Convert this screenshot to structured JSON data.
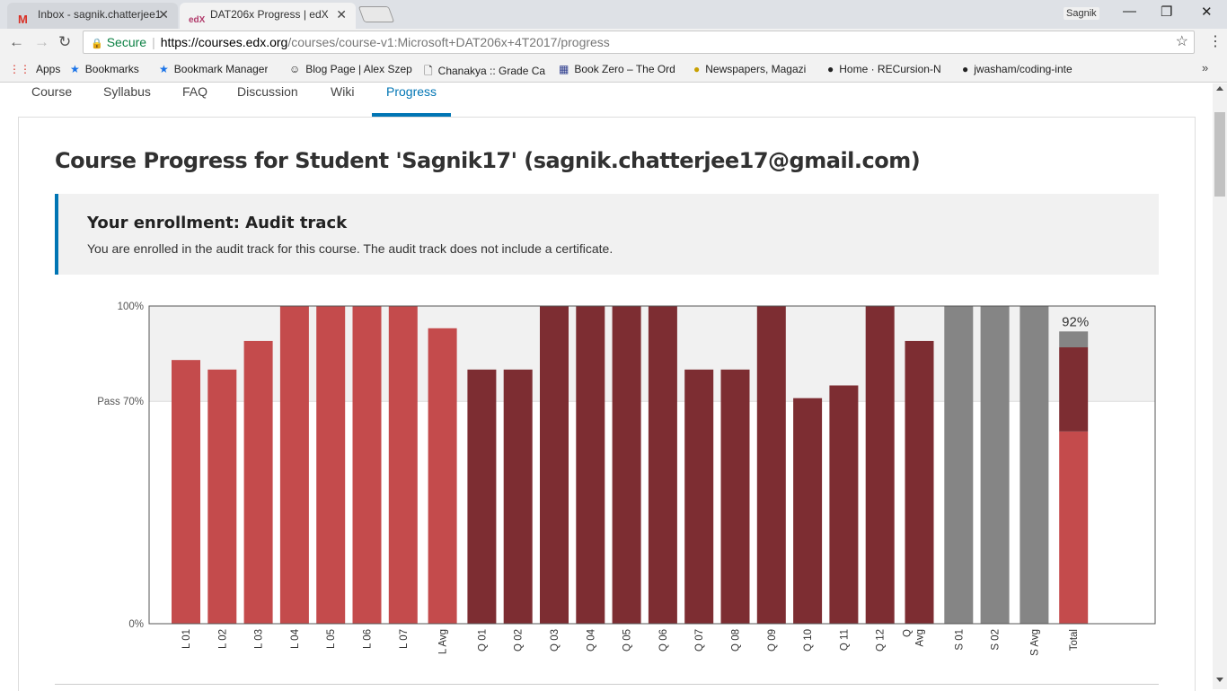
{
  "browser": {
    "tabs": [
      {
        "favicon": "M",
        "title": "Inbox - sagnik.chatterjee1"
      },
      {
        "favicon": "edX",
        "title": "DAT206x Progress | edX"
      }
    ],
    "profile_name": "Sagnik",
    "omnibox": {
      "secure_label": "Secure",
      "url_host": "https://courses.edx.org",
      "url_path": "/courses/course-v1:Microsoft+DAT206x+4T2017/progress"
    },
    "bookmarks": [
      {
        "icon": "apps-grid-icon",
        "label": "Apps"
      },
      {
        "icon": "star-icon",
        "label": "Bookmarks"
      },
      {
        "icon": "star-icon",
        "label": "Bookmark Manager"
      },
      {
        "icon": "person-icon",
        "label": "Blog Page | Alex Szep"
      },
      {
        "icon": "page-icon",
        "label": "Chanakya :: Grade Ca"
      },
      {
        "icon": "grid-icon",
        "label": "Book Zero – The Ord"
      },
      {
        "icon": "owl-icon",
        "label": "Newspapers, Magazi"
      },
      {
        "icon": "github-icon",
        "label": "Home · RECursion-N"
      },
      {
        "icon": "github-icon",
        "label": "jwasham/coding-inte"
      }
    ]
  },
  "course_nav": {
    "items": [
      "Course",
      "Syllabus",
      "FAQ",
      "Discussion",
      "Wiki",
      "Progress"
    ],
    "active": "Progress"
  },
  "page": {
    "title": "Course Progress for Student 'Sagnik17' (sagnik.chatterjee17@gmail.com)",
    "enrollment": {
      "title": "Your enrollment: Audit track",
      "text": "You are enrolled in the audit track for this course. The audit track does not include a certificate."
    }
  },
  "colors": {
    "lab": "#c44b4c",
    "quiz": "#7d2d32",
    "survey": "#858585",
    "pass_region": "#f1f1f1",
    "accent": "#0075b4"
  },
  "chart_data": {
    "type": "bar",
    "title": "",
    "xlabel": "",
    "ylabel": "",
    "ylim": [
      0,
      100
    ],
    "y_tick_labels": [
      {
        "value": 100,
        "label": "100%"
      },
      {
        "value": 70,
        "label": "Pass 70%"
      },
      {
        "value": 0,
        "label": "0%"
      }
    ],
    "grid": false,
    "categories": [
      "L 01",
      "L 02",
      "L 03",
      "L 04",
      "L 05",
      "L 06",
      "L 07",
      "L Avg",
      "Q 01",
      "Q 02",
      "Q 03",
      "Q 04",
      "Q 05",
      "Q 06",
      "Q 07",
      "Q 08",
      "Q 09",
      "Q 10",
      "Q 11",
      "Q 12",
      "Q Avg",
      "S 01",
      "S 02",
      "S Avg",
      "Total"
    ],
    "bars": [
      {
        "label": "L 01",
        "value": 83,
        "group": "lab"
      },
      {
        "label": "L 02",
        "value": 80,
        "group": "lab"
      },
      {
        "label": "L 03",
        "value": 89,
        "group": "lab"
      },
      {
        "label": "L 04",
        "value": 100,
        "group": "lab"
      },
      {
        "label": "L 05",
        "value": 100,
        "group": "lab"
      },
      {
        "label": "L 06",
        "value": 100,
        "group": "lab"
      },
      {
        "label": "L 07",
        "value": 100,
        "group": "lab"
      },
      {
        "label": "L Avg",
        "value": 93,
        "group": "lab"
      },
      {
        "label": "Q 01",
        "value": 80,
        "group": "quiz"
      },
      {
        "label": "Q 02",
        "value": 80,
        "group": "quiz"
      },
      {
        "label": "Q 03",
        "value": 100,
        "group": "quiz"
      },
      {
        "label": "Q 04",
        "value": 100,
        "group": "quiz"
      },
      {
        "label": "Q 05",
        "value": 100,
        "group": "quiz"
      },
      {
        "label": "Q 06",
        "value": 100,
        "group": "quiz"
      },
      {
        "label": "Q 07",
        "value": 80,
        "group": "quiz"
      },
      {
        "label": "Q 08",
        "value": 80,
        "group": "quiz"
      },
      {
        "label": "Q 09",
        "value": 100,
        "group": "quiz"
      },
      {
        "label": "Q 10",
        "value": 71,
        "group": "quiz"
      },
      {
        "label": "Q 11",
        "value": 75,
        "group": "quiz"
      },
      {
        "label": "Q 12",
        "value": 100,
        "group": "quiz"
      },
      {
        "label": "Q Avg",
        "value": 89,
        "group": "quiz"
      },
      {
        "label": "S 01",
        "value": 100,
        "group": "survey"
      },
      {
        "label": "S 02",
        "value": 100,
        "group": "survey"
      },
      {
        "label": "S Avg",
        "value": 100,
        "group": "survey"
      }
    ],
    "total": {
      "label": "Total",
      "value_label": "92%",
      "segments": [
        {
          "group": "lab",
          "value": 60.5
        },
        {
          "group": "quiz",
          "value": 26.5
        },
        {
          "group": "survey",
          "value": 5
        }
      ]
    }
  }
}
